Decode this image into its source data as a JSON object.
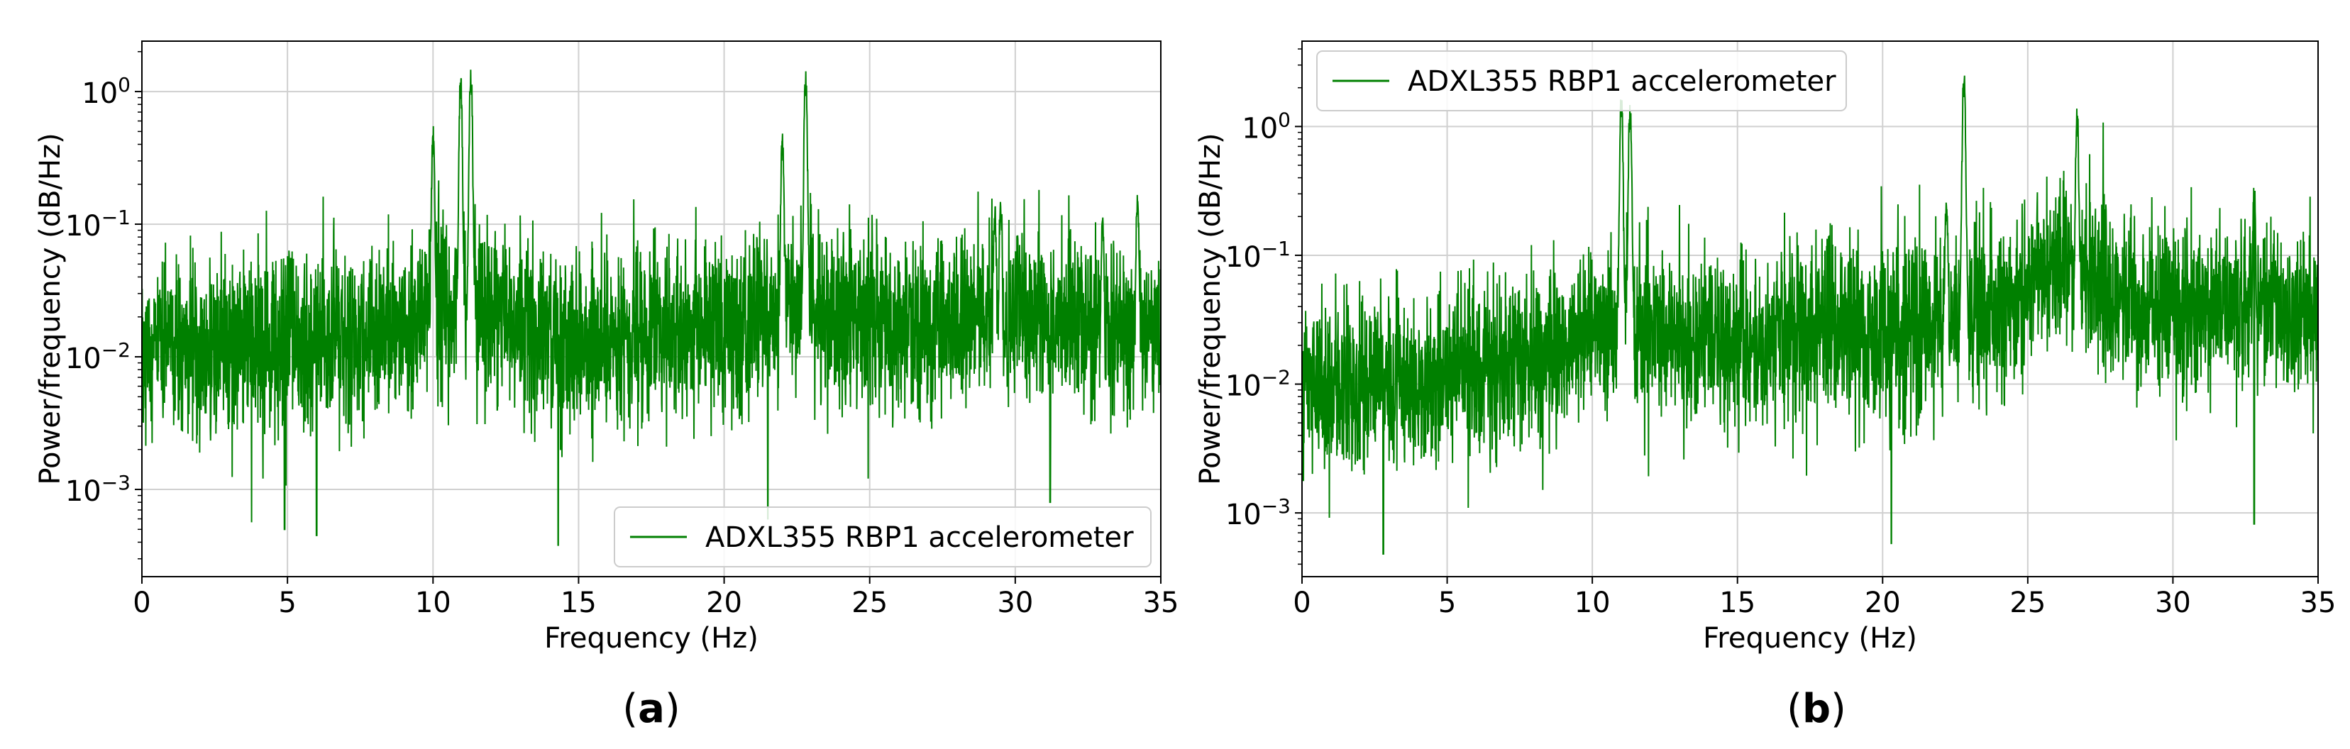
{
  "chart_data": [
    {
      "id": "a",
      "type": "line",
      "scale_y": "log",
      "xlabel": "Frequency (Hz)",
      "ylabel": "Power/frequency (dB/Hz)",
      "xlim": [
        0,
        35
      ],
      "ylim": [
        0.00022,
        2.4
      ],
      "xticks": [
        0,
        5,
        10,
        15,
        20,
        25,
        30,
        35
      ],
      "yticks": [
        0.001,
        0.01,
        0.1,
        1
      ],
      "ytick_labels": [
        "10^-3",
        "10^-2",
        "10^-1",
        "10^0"
      ],
      "grid": true,
      "legend_position": "lower-right",
      "series": [
        {
          "name": "ADXL355 RBP1 accelerometer",
          "color": "#008000",
          "baseline_envelope": [
            [
              0,
              0.011
            ],
            [
              5,
              0.012
            ],
            [
              9,
              0.016
            ],
            [
              10,
              0.025
            ],
            [
              12,
              0.02
            ],
            [
              15,
              0.014
            ],
            [
              20,
              0.016
            ],
            [
              22,
              0.025
            ],
            [
              24,
              0.02
            ],
            [
              28,
              0.017
            ],
            [
              29.5,
              0.022
            ],
            [
              35,
              0.015
            ]
          ],
          "peaks": [
            {
              "x": 10.0,
              "y": 0.55
            },
            {
              "x": 10.95,
              "y": 1.3
            },
            {
              "x": 11.3,
              "y": 1.5
            },
            {
              "x": 22.0,
              "y": 0.5
            },
            {
              "x": 22.8,
              "y": 1.5
            },
            {
              "x": 29.3,
              "y": 0.14
            },
            {
              "x": 29.5,
              "y": 0.17
            },
            {
              "x": 33.0,
              "y": 0.12
            },
            {
              "x": 34.2,
              "y": 0.17
            }
          ],
          "dips": [
            {
              "x": 4.9,
              "y": 0.0005
            },
            {
              "x": 6.0,
              "y": 0.00045
            },
            {
              "x": 14.3,
              "y": 0.00038
            },
            {
              "x": 21.5,
              "y": 0.0006
            },
            {
              "x": 31.2,
              "y": 0.0008
            }
          ]
        }
      ]
    },
    {
      "id": "b",
      "type": "line",
      "scale_y": "log",
      "xlabel": "Frequency (Hz)",
      "ylabel": "Power/frequency (dB/Hz)",
      "xlim": [
        0,
        35
      ],
      "ylim": [
        0.00032,
        4.6
      ],
      "xticks": [
        0,
        5,
        10,
        15,
        20,
        25,
        30,
        35
      ],
      "yticks": [
        0.001,
        0.01,
        0.1,
        1
      ],
      "ytick_labels": [
        "10^-3",
        "10^-2",
        "10^-1",
        "10^0"
      ],
      "grid": true,
      "legend_position": "top-left",
      "series": [
        {
          "name": "ADXL355 RBP1 accelerometer",
          "color": "#008000",
          "baseline_envelope": [
            [
              0,
              0.009
            ],
            [
              5,
              0.011
            ],
            [
              9,
              0.018
            ],
            [
              10,
              0.03
            ],
            [
              12,
              0.025
            ],
            [
              15,
              0.02
            ],
            [
              18,
              0.03
            ],
            [
              20,
              0.025
            ],
            [
              22,
              0.03
            ],
            [
              24,
              0.035
            ],
            [
              26,
              0.1
            ],
            [
              28,
              0.045
            ],
            [
              30,
              0.04
            ],
            [
              35,
              0.04
            ]
          ],
          "peaks": [
            {
              "x": 11.0,
              "y": 1.7
            },
            {
              "x": 11.3,
              "y": 1.6
            },
            {
              "x": 22.8,
              "y": 2.8
            },
            {
              "x": 26.7,
              "y": 1.4
            },
            {
              "x": 22.2,
              "y": 0.3
            },
            {
              "x": 32.8,
              "y": 0.35
            }
          ],
          "dips": [
            {
              "x": 2.8,
              "y": 0.00048
            },
            {
              "x": 20.3,
              "y": 0.00058
            },
            {
              "x": 32.8,
              "y": 0.00082
            }
          ]
        }
      ]
    }
  ],
  "captions": [
    "(a)",
    "(b)"
  ]
}
